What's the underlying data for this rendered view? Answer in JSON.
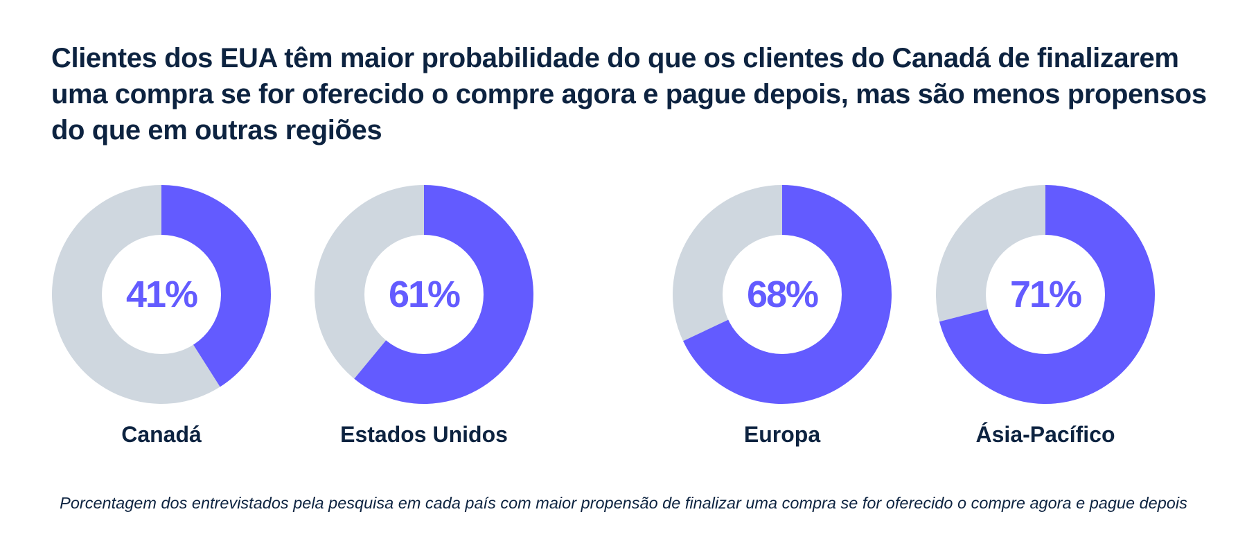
{
  "header": {
    "title": "Clientes dos EUA têm maior probabilidade do que os clientes do Canadá de finalizarem uma compra se for oferecido o compre agora e pague depois, mas são menos propensos do que em outras regiões"
  },
  "footer": {
    "caption": "Porcentagem dos entrevistados pela pesquisa em cada país com maior propensão de finalizar uma compra se for oferecido o compre agora e pague depois"
  },
  "colors": {
    "accent": "#635bff",
    "remainder": "#cfd7df",
    "text": "#0d2340"
  },
  "chart_data": {
    "type": "pie",
    "variant": "donut",
    "title": "Clientes dos EUA têm maior probabilidade do que os clientes do Canadá de finalizarem uma compra se for oferecido o compre agora e pague depois, mas são menos propensos do que em outras regiões",
    "categories": [
      "Canadá",
      "Estados Unidos",
      "Europa",
      "Ásia-Pacífico"
    ],
    "values": [
      41,
      61,
      68,
      71
    ],
    "value_labels": [
      "41%",
      "61%",
      "68%",
      "71%"
    ],
    "unit": "%",
    "max": 100
  }
}
